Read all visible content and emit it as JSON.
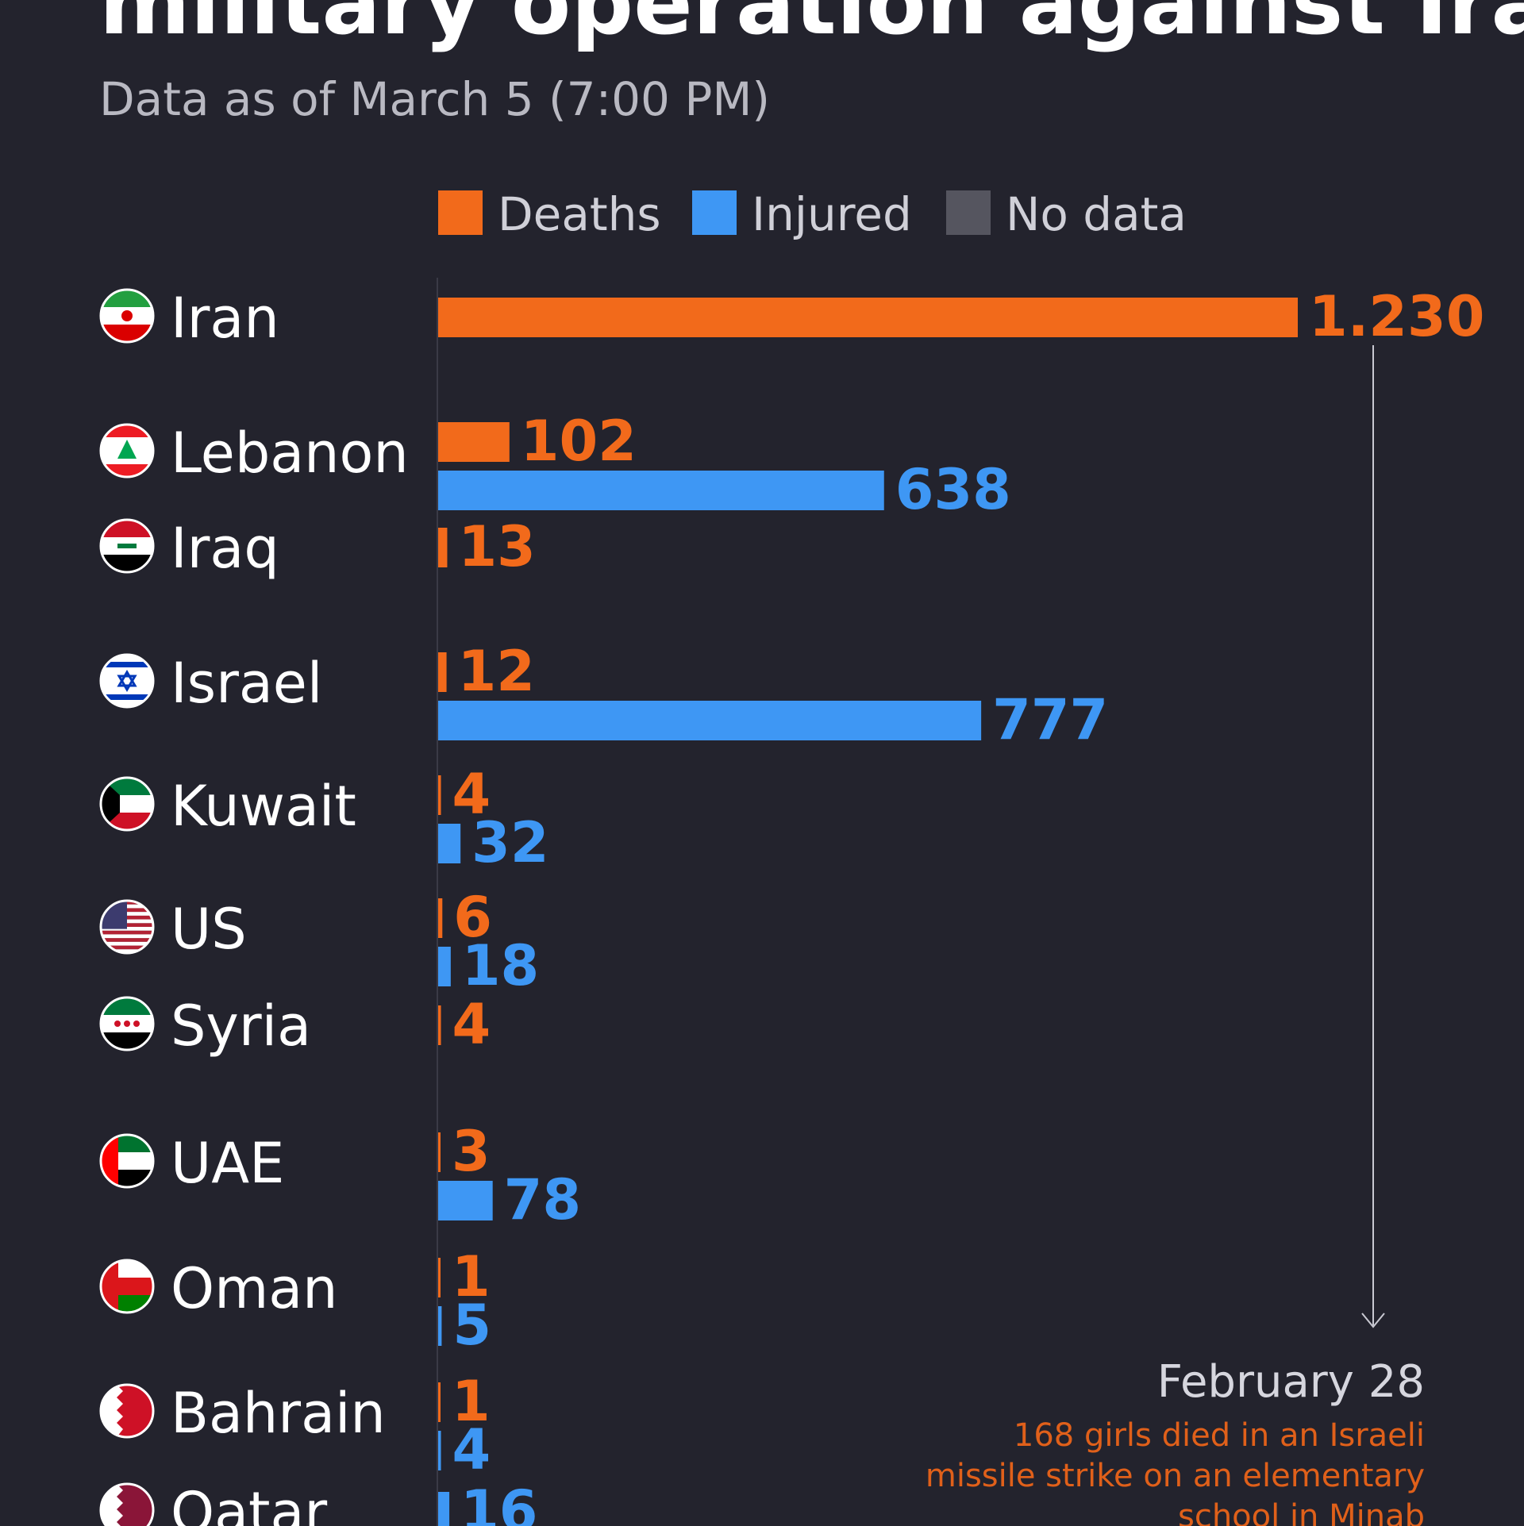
{
  "header": {
    "title": "military operation against Iran",
    "subtitle": "Data as of March 5 (7:00 PM)"
  },
  "colors": {
    "background": "#23232d",
    "deaths": "#f26a1b",
    "injured": "#3e97f4",
    "no_data": "#55555f",
    "note": "#e0601a"
  },
  "legend": {
    "deaths": "Deaths",
    "injured": "Injured",
    "no_data": "No data"
  },
  "annotation": {
    "date": "February 28",
    "lines": [
      "168 girls died in an Israeli",
      "missile strike on an elementary",
      "school in Minab"
    ]
  },
  "chart_data": {
    "type": "bar",
    "orientation": "horizontal",
    "categories": [
      "Iran",
      "Lebanon",
      "Iraq",
      "Israel",
      "Kuwait",
      "US",
      "Syria",
      "UAE",
      "Oman",
      "Bahrain",
      "Qatar"
    ],
    "series": [
      {
        "name": "Deaths",
        "values": [
          1230,
          102,
          13,
          12,
          4,
          6,
          4,
          3,
          1,
          1,
          null
        ]
      },
      {
        "name": "Injured",
        "values": [
          null,
          638,
          null,
          777,
          32,
          18,
          null,
          78,
          5,
          4,
          16
        ]
      }
    ],
    "value_labels": {
      "Deaths": [
        "1.230",
        "102",
        "13",
        "12",
        "4",
        "6",
        "4",
        "3",
        "1",
        "1",
        null
      ],
      "Injured": [
        null,
        "638",
        null,
        "777",
        "32",
        "18",
        null,
        "78",
        "5",
        "4",
        "16"
      ]
    },
    "xlim": [
      0,
      1230
    ],
    "flags": [
      "iran-flag-icon",
      "lebanon-flag-icon",
      "iraq-flag-icon",
      "israel-flag-icon",
      "kuwait-flag-icon",
      "us-flag-icon",
      "syria-flag-icon",
      "uae-flag-icon",
      "oman-flag-icon",
      "bahrain-flag-icon",
      "qatar-flag-icon"
    ]
  }
}
